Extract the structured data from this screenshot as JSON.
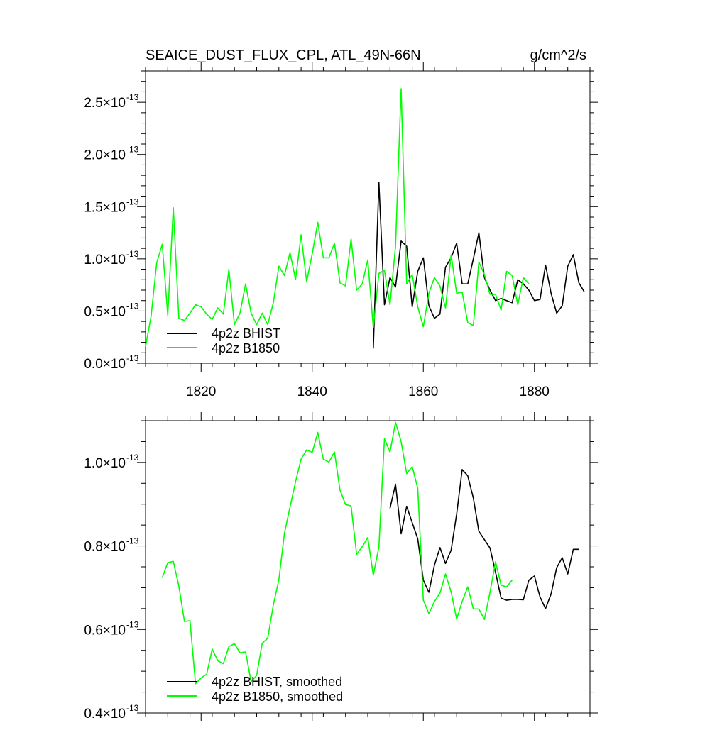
{
  "header": {
    "title": "SEAICE_DUST_FLUX_CPL, ATL_49N-66N",
    "units": "g/cm^2/s"
  },
  "colors": {
    "bhist": "#000000",
    "b1850": "#00ff00",
    "axis": "#000000",
    "background": "#ffffff"
  },
  "chart_data": [
    {
      "type": "line",
      "title": "SEAICE_DUST_FLUX_CPL, ATL_49N-66N",
      "units": "g/cm^2/s",
      "xlim": [
        1810,
        1890
      ],
      "ylim": [
        0.0,
        2.8
      ],
      "y_scale_label": "×10^-13",
      "x_ticks": [
        1820,
        1840,
        1860,
        1880
      ],
      "x_tick_labels": [
        "1820",
        "1840",
        "1860",
        "1880"
      ],
      "y_ticks": [
        0.0,
        0.5,
        1.0,
        1.5,
        2.0,
        2.5
      ],
      "y_tick_mantissas": [
        "0.0",
        "0.5",
        "1.0",
        "1.5",
        "2.0",
        "2.5"
      ],
      "y_tick_exponent": "-13",
      "legend_position": "bottom-left",
      "series": [
        {
          "name": "4p2z BHIST",
          "color": "#000000",
          "x": [
            1851,
            1852,
            1853,
            1854,
            1855,
            1856,
            1857,
            1858,
            1859,
            1860,
            1861,
            1862,
            1863,
            1864,
            1865,
            1866,
            1867,
            1868,
            1869,
            1870,
            1871,
            1872,
            1873,
            1874,
            1875,
            1876,
            1877,
            1878,
            1879,
            1880,
            1881,
            1882,
            1883,
            1884,
            1885,
            1886,
            1887,
            1888,
            1889
          ],
          "y": [
            0.14,
            1.73,
            0.56,
            0.82,
            0.73,
            1.17,
            1.12,
            0.54,
            0.88,
            1.01,
            0.55,
            0.43,
            0.47,
            0.92,
            1.01,
            1.15,
            0.76,
            0.76,
            1.0,
            1.25,
            0.82,
            0.7,
            0.6,
            0.62,
            0.6,
            0.58,
            0.8,
            0.76,
            0.7,
            0.6,
            0.61,
            0.94,
            0.67,
            0.48,
            0.55,
            0.93,
            1.04,
            0.77,
            0.68
          ]
        },
        {
          "name": "4p2z B1850",
          "color": "#00ff00",
          "x": [
            1810,
            1811,
            1812,
            1813,
            1814,
            1815,
            1816,
            1817,
            1818,
            1819,
            1820,
            1821,
            1822,
            1823,
            1824,
            1825,
            1826,
            1827,
            1828,
            1829,
            1830,
            1831,
            1832,
            1833,
            1834,
            1835,
            1836,
            1837,
            1838,
            1839,
            1840,
            1841,
            1842,
            1843,
            1844,
            1845,
            1846,
            1847,
            1848,
            1849,
            1850,
            1851,
            1852,
            1853,
            1854,
            1855,
            1856,
            1857,
            1858,
            1859,
            1860,
            1861,
            1862,
            1863,
            1864,
            1865,
            1866,
            1867,
            1868,
            1869,
            1870,
            1871,
            1872,
            1873,
            1874,
            1875,
            1876,
            1877,
            1878,
            1879
          ],
          "y": [
            0.16,
            0.45,
            0.96,
            1.14,
            0.46,
            1.49,
            0.43,
            0.41,
            0.48,
            0.56,
            0.54,
            0.47,
            0.42,
            0.53,
            0.47,
            0.9,
            0.37,
            0.48,
            0.76,
            0.48,
            0.37,
            0.48,
            0.37,
            0.58,
            0.93,
            0.84,
            1.06,
            0.8,
            1.23,
            0.78,
            1.05,
            1.35,
            1.01,
            1.01,
            1.15,
            0.77,
            0.74,
            1.19,
            0.7,
            0.76,
            0.99,
            0.34,
            0.86,
            0.89,
            0.56,
            1.12,
            2.63,
            0.76,
            0.85,
            0.54,
            0.35,
            0.67,
            0.82,
            0.74,
            0.53,
            1.04,
            0.67,
            0.68,
            0.39,
            0.36,
            0.97,
            0.85,
            0.66,
            0.66,
            0.51,
            0.88,
            0.84,
            0.56,
            0.82,
            0.76
          ]
        }
      ]
    },
    {
      "type": "line",
      "title": "",
      "xlim": [
        1810,
        1890
      ],
      "ylim": [
        0.4,
        1.1
      ],
      "y_scale_label": "×10^-13",
      "x_ticks": [
        1820,
        1840,
        1860,
        1880
      ],
      "x_tick_labels": [],
      "y_ticks": [
        0.4,
        0.6,
        0.8,
        1.0
      ],
      "y_tick_mantissas": [
        "0.4",
        "0.6",
        "0.8",
        "1.0"
      ],
      "y_tick_exponent": "-13",
      "legend_position": "bottom-left",
      "series": [
        {
          "name": "4p2z BHIST, smoothed",
          "color": "#000000",
          "x": [
            1854,
            1855,
            1856,
            1857,
            1858,
            1859,
            1860,
            1861,
            1862,
            1863,
            1864,
            1865,
            1866,
            1867,
            1868,
            1869,
            1870,
            1871,
            1872,
            1873,
            1874,
            1875,
            1876,
            1877,
            1878,
            1879,
            1880,
            1881,
            1882,
            1883,
            1884,
            1885,
            1886,
            1887,
            1888
          ],
          "y": [
            0.89,
            0.948,
            0.829,
            0.895,
            0.856,
            0.817,
            0.718,
            0.689,
            0.754,
            0.796,
            0.758,
            0.79,
            0.876,
            0.983,
            0.968,
            0.915,
            0.835,
            0.815,
            0.795,
            0.737,
            0.675,
            0.67,
            0.672,
            0.672,
            0.671,
            0.718,
            0.728,
            0.678,
            0.65,
            0.685,
            0.748,
            0.772,
            0.733,
            0.792,
            0.792
          ]
        },
        {
          "name": "4p2z B1850, smoothed",
          "color": "#00ff00",
          "x": [
            1813,
            1814,
            1815,
            1816,
            1817,
            1818,
            1819,
            1820,
            1821,
            1822,
            1823,
            1824,
            1825,
            1826,
            1827,
            1828,
            1829,
            1830,
            1831,
            1832,
            1833,
            1834,
            1835,
            1836,
            1837,
            1838,
            1839,
            1840,
            1841,
            1842,
            1843,
            1844,
            1845,
            1846,
            1847,
            1848,
            1849,
            1850,
            1851,
            1852,
            1853,
            1854,
            1855,
            1856,
            1857,
            1858,
            1859,
            1860,
            1861,
            1862,
            1863,
            1864,
            1865,
            1866,
            1867,
            1868,
            1869,
            1870,
            1871,
            1872,
            1873,
            1874,
            1875,
            1876
          ],
          "y": [
            0.724,
            0.76,
            0.763,
            0.704,
            0.619,
            0.621,
            0.47,
            0.484,
            0.493,
            0.553,
            0.525,
            0.518,
            0.559,
            0.566,
            0.544,
            0.546,
            0.475,
            0.49,
            0.567,
            0.579,
            0.659,
            0.719,
            0.83,
            0.893,
            0.954,
            1.008,
            1.03,
            1.024,
            1.072,
            1.008,
            1.001,
            1.025,
            0.934,
            0.899,
            0.896,
            0.78,
            0.798,
            0.82,
            0.73,
            0.798,
            1.057,
            1.025,
            1.096,
            1.05,
            0.973,
            0.99,
            0.938,
            0.67,
            0.638,
            0.667,
            0.687,
            0.733,
            0.69,
            0.625,
            0.667,
            0.702,
            0.649,
            0.649,
            0.624,
            0.689,
            0.762,
            0.706,
            0.702,
            0.718
          ]
        }
      ]
    }
  ]
}
